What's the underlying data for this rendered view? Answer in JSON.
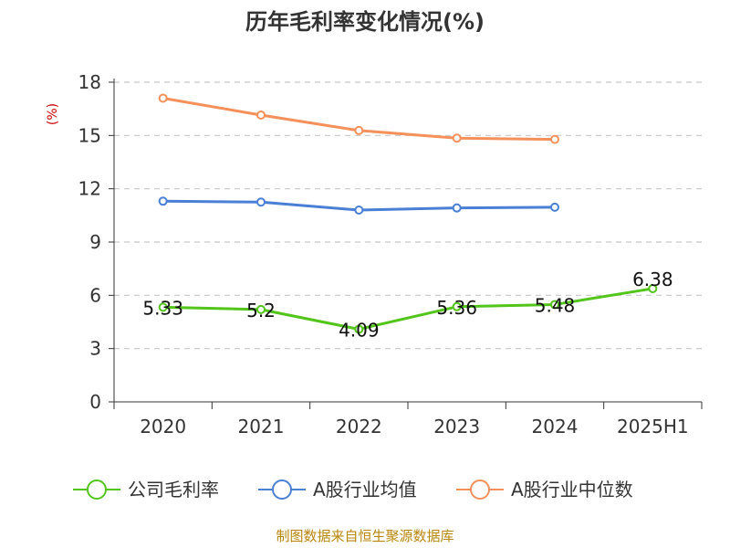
{
  "chart_data": {
    "type": "line",
    "title": "历年毛利率变化情况(%)",
    "unit_label": "(%)",
    "categories": [
      "2020",
      "2021",
      "2022",
      "2023",
      "2024",
      "2025H1"
    ],
    "ylim": [
      0,
      18
    ],
    "yticks": [
      "0",
      "3",
      "6",
      "9",
      "12",
      "15",
      "18"
    ],
    "grid": true,
    "legend_position": "bottom",
    "series": [
      {
        "name": "公司毛利率",
        "color": "#52c41a",
        "values": [
          5.33,
          5.2,
          4.09,
          5.36,
          5.48,
          6.38
        ],
        "labels": [
          "5.33",
          "5.2",
          "4.09",
          "5.36",
          "5.48",
          "6.38"
        ]
      },
      {
        "name": "A股行业均值",
        "color": "#4a7fd6",
        "values": [
          11.3,
          11.25,
          10.8,
          10.92,
          10.96,
          null
        ]
      },
      {
        "name": "A股行业中位数",
        "color": "#f5905a",
        "values": [
          17.1,
          16.15,
          15.28,
          14.85,
          14.78,
          null
        ]
      }
    ],
    "source": "制图数据来自恒生聚源数据库"
  }
}
